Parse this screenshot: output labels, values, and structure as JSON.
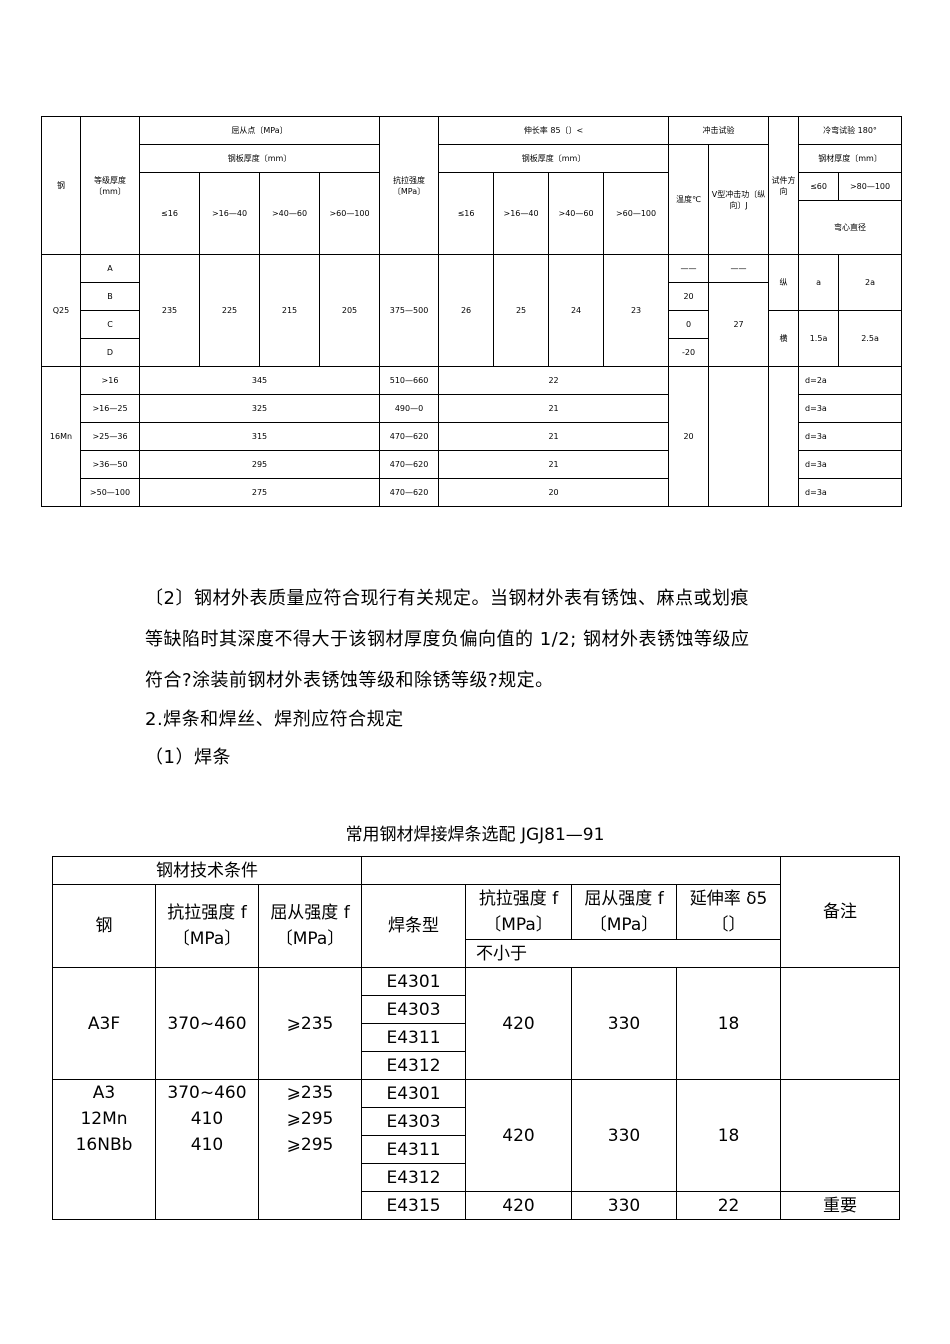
{
  "table1": {
    "h": {
      "steel": "钢",
      "grade": "等级厚度〔mm〕",
      "yield": "屈从点〔MPa〕",
      "plate": "钢板厚度〔mm〕",
      "tensile": "抗拉强度〔MPa〕",
      "elong": "伸长率 85〔〕<",
      "impact": "冲击试验",
      "temp": "温度℃",
      "vimpact": "V型冲击功〔纵向〕J",
      "dir": "试件方向",
      "bend": "冷弯试验 180°",
      "bendplate": "钢材厚度〔mm〕",
      "b1": "≤60",
      "b2": ">80—100",
      "mandrel": "弯心直径",
      "t": [
        "≤16",
        ">16—40",
        ">40—60",
        ">60—100"
      ]
    },
    "q25": {
      "name": "Q25",
      "grades": [
        "A",
        "B",
        "C",
        "D"
      ],
      "yield": [
        "235",
        "225",
        "215",
        "205"
      ],
      "tensile": "375—500",
      "elong": [
        "26",
        "25",
        "24",
        "23"
      ],
      "temps": [
        "——",
        "20",
        "0",
        "-20"
      ],
      "v": [
        "——",
        "27"
      ],
      "dir": [
        "纵",
        "横"
      ],
      "bend": [
        [
          "a",
          "2a"
        ],
        [
          "1.5a",
          "2.5a"
        ]
      ]
    },
    "mn": {
      "name": "16Mn",
      "temp": "20",
      "rows": [
        {
          "t": ">16",
          "y": "345",
          "ts": "510—660",
          "e": "22",
          "d": "d=2a"
        },
        {
          "t": ">16—25",
          "y": "325",
          "ts": "490—0",
          "e": "21",
          "d": "d=3a"
        },
        {
          "t": ">25—36",
          "y": "315",
          "ts": "470—620",
          "e": "21",
          "d": "d=3a"
        },
        {
          "t": ">36—50",
          "y": "295",
          "ts": "470—620",
          "e": "21",
          "d": "d=3a"
        },
        {
          "t": ">50—100",
          "y": "275",
          "ts": "470—620",
          "e": "20",
          "d": "d=3a"
        }
      ]
    }
  },
  "paragraphs": [
    "〔2〕钢材外表质量应符合现行有关规定。当钢材外表有锈蚀、麻点或划痕",
    "等缺陷时其深度不得大于该钢材厚度负偏向值的 1/2; 钢材外表锈蚀等级应",
    "符合?涂装前钢材外表锈蚀等级和除锈等级?规定。",
    "2.焊条和焊丝、焊剂应符合规定",
    "（1）焊条"
  ],
  "table2": {
    "caption": "常用钢材焊接焊条选配   JGJ81—91",
    "h": {
      "cond": "钢材技术条件",
      "steel": "钢",
      "ts": "抗拉强度 f〔MPa〕",
      "ys": "屈从强度 f〔MPa〕",
      "type": "焊条型",
      "ets": "抗拉强度 f〔MPa〕",
      "eys": "屈从强度 f〔MPa〕",
      "el": "延伸率 δ5〔〕",
      "min": "不小于",
      "note": "备注"
    },
    "g1": {
      "steel": "A3F",
      "ts": "370~460",
      "ys": "⩾235",
      "types": [
        "E4301",
        "E4303",
        "E4311",
        "E4312"
      ],
      "ets": "420",
      "eys": "330",
      "el": "18"
    },
    "g2": {
      "steel": [
        "A3",
        "12Mn",
        "16NBb"
      ],
      "ts": [
        "370~460",
        "410",
        "410"
      ],
      "ys": [
        "⩾235",
        "⩾295",
        "⩾295"
      ],
      "types": [
        "E4301",
        "E4303",
        "E4311",
        "E4312"
      ],
      "ets": "420",
      "eys": "330",
      "el": "18"
    },
    "last": {
      "type": "E4315",
      "ets": "420",
      "eys": "330",
      "el": "22",
      "note": "重要"
    }
  }
}
